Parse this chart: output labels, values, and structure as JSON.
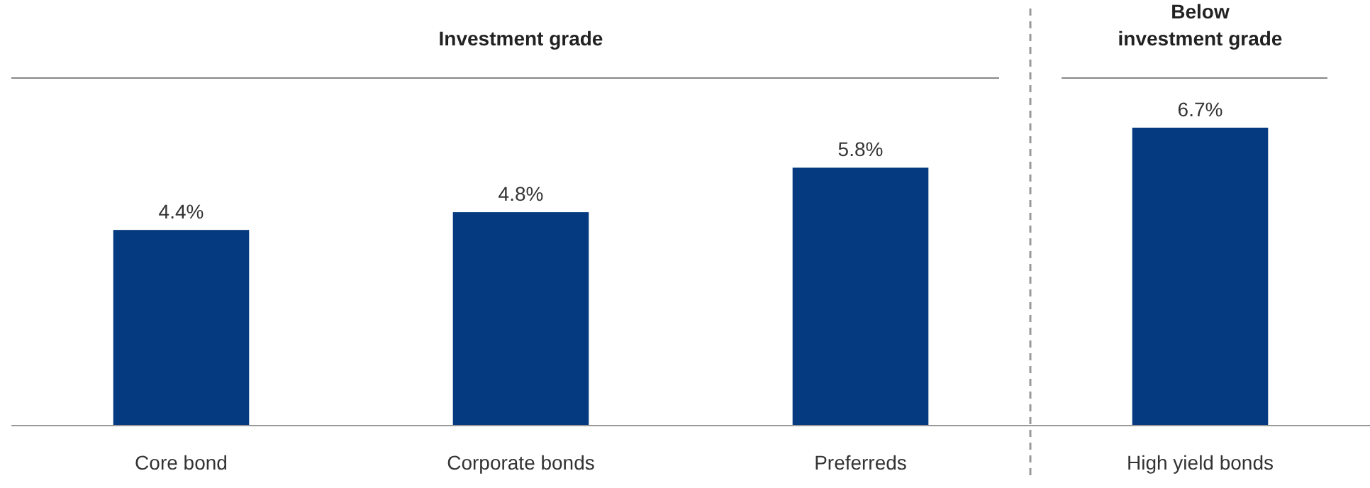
{
  "chart_data": {
    "type": "bar",
    "categories": [
      "Core bond",
      "Corporate bonds",
      "Preferreds",
      "High yield bonds"
    ],
    "values": [
      4.4,
      4.8,
      5.8,
      6.7
    ],
    "value_labels": [
      "4.4%",
      "4.8%",
      "5.8%",
      "6.7%"
    ],
    "color": "#063a80",
    "annotations": [
      "Investment grade",
      "Below investment grade"
    ]
  }
}
